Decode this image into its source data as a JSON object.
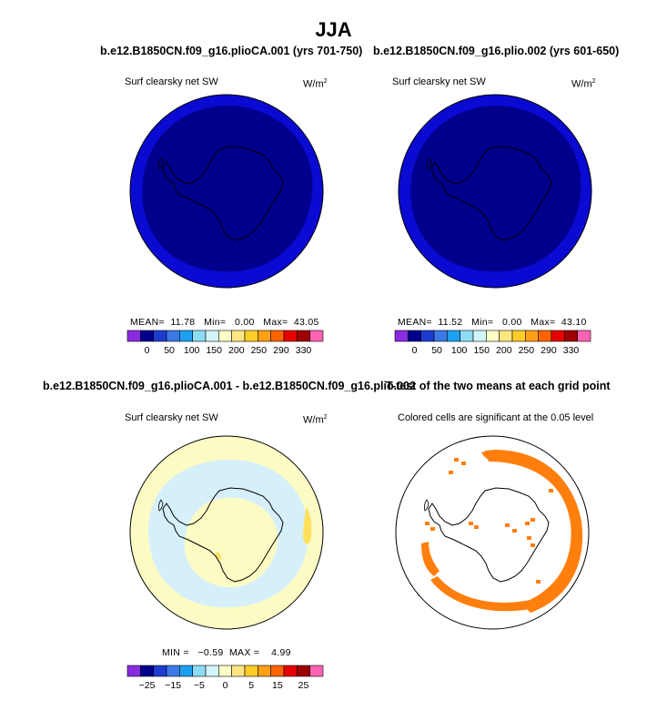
{
  "main_title": "JJA",
  "colors": {
    "map_dark": "#00008c",
    "map_ring": "#0a0ad2",
    "diff_pale_yellow": "#fdfbc4",
    "diff_pale_blue": "#d6f0fb",
    "diff_yellow": "#ffe05a",
    "sig_orange": "#ff7f0e"
  },
  "chart_data": [
    {
      "type": "heatmap",
      "panel": "top-left",
      "title": "b.e12.B1850CN.f09_g16.plioCA.001 (yrs 701-750)",
      "subtitle": "Surf clearsky net SW",
      "units_base": "W/m",
      "units_exp": "2",
      "projection": "south polar stereographic",
      "stats": {
        "mean_label": "MEAN=",
        "mean": "11.78",
        "min_label": "Min=",
        "min": "0.00",
        "max_label": "Max=",
        "max": "43.05"
      },
      "colorbar": {
        "ticks": [
          "0",
          "50",
          "100",
          "150",
          "200",
          "250",
          "290",
          "330"
        ],
        "colors": [
          "#8a2be2",
          "#00008c",
          "#1e3cd2",
          "#3c78e6",
          "#1ea0f0",
          "#8cdcf5",
          "#d2f5fa",
          "#ffffc8",
          "#ffe682",
          "#ffcd28",
          "#ffa014",
          "#ff6400",
          "#e60000",
          "#a00000",
          "#ff64b4"
        ]
      }
    },
    {
      "type": "heatmap",
      "panel": "top-right",
      "title": "b.e12.B1850CN.f09_g16.plio.002 (yrs 601-650)",
      "subtitle": "Surf clearsky net SW",
      "units_base": "W/m",
      "units_exp": "2",
      "projection": "south polar stereographic",
      "stats": {
        "mean_label": "MEAN=",
        "mean": "11.52",
        "min_label": "Min=",
        "min": "0.00",
        "max_label": "Max=",
        "max": "43.10"
      },
      "colorbar": {
        "ticks": [
          "0",
          "50",
          "100",
          "150",
          "200",
          "250",
          "290",
          "330"
        ],
        "colors": [
          "#8a2be2",
          "#00008c",
          "#1e3cd2",
          "#3c78e6",
          "#1ea0f0",
          "#8cdcf5",
          "#d2f5fa",
          "#ffffc8",
          "#ffe682",
          "#ffcd28",
          "#ffa014",
          "#ff6400",
          "#e60000",
          "#a00000",
          "#ff64b4"
        ]
      }
    },
    {
      "type": "heatmap",
      "panel": "bottom-left",
      "title": "b.e12.B1850CN.f09_g16.plioCA.001 - b.e12.B1850CN.f09_g16.plio.002",
      "subtitle": "Surf clearsky net SW",
      "units_base": "W/m",
      "units_exp": "2",
      "projection": "south polar stereographic",
      "stats": {
        "min_label": "MIN =",
        "min": "−0.59",
        "max_label": "MAX =",
        "max": "4.99"
      },
      "colorbar": {
        "ticks": [
          "−25",
          "−15",
          "−5",
          "0",
          "5",
          "15",
          "25"
        ],
        "colors": [
          "#8a2be2",
          "#00008c",
          "#1e3cd2",
          "#3c78e6",
          "#1ea0f0",
          "#8cdcf5",
          "#d2f5fa",
          "#ffffc8",
          "#ffe682",
          "#ffcd28",
          "#ffa014",
          "#ff6400",
          "#e60000",
          "#a00000",
          "#ff64b4"
        ]
      }
    },
    {
      "type": "heatmap",
      "panel": "bottom-right",
      "title": "T-test of the two means at each grid point",
      "subtitle": "Colored cells are significant at the 0.05 level",
      "projection": "south polar stereographic"
    }
  ]
}
